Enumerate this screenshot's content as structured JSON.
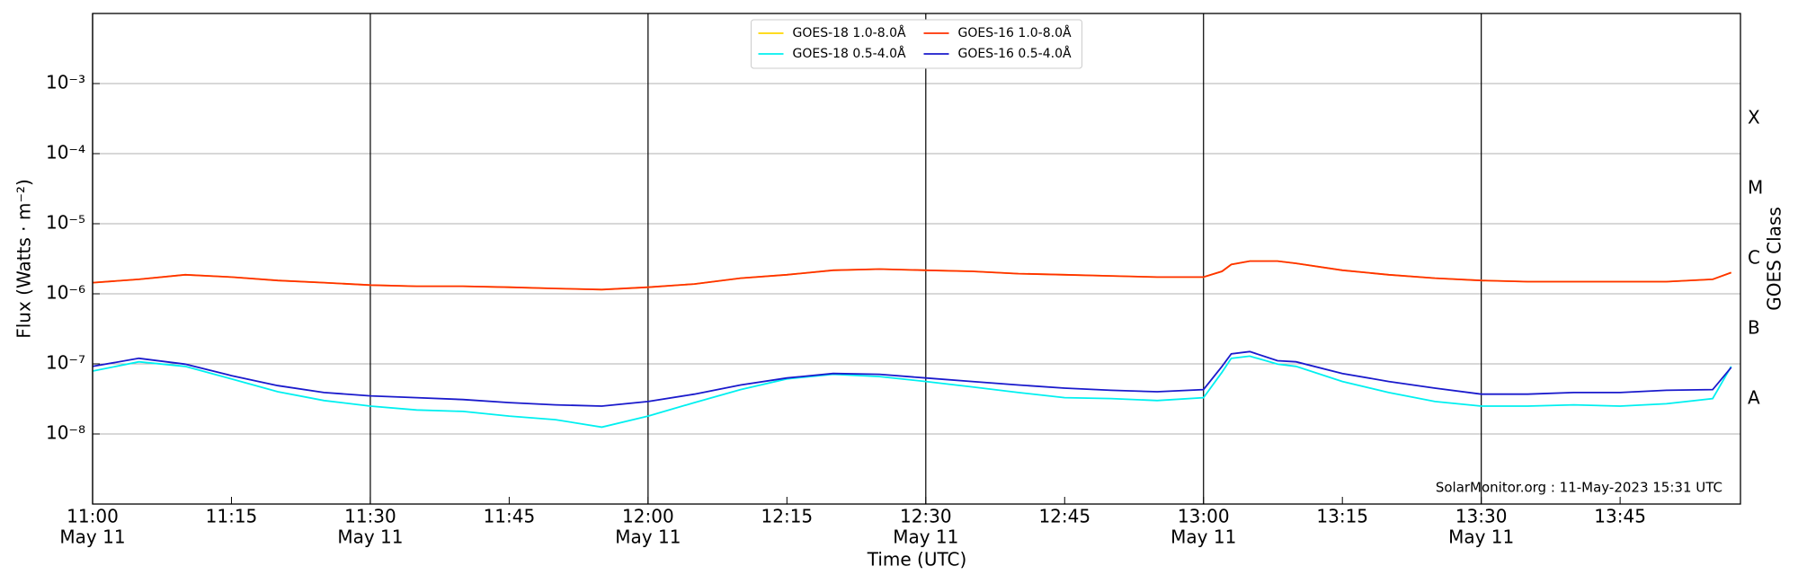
{
  "chart_data": {
    "type": "line",
    "xlabel": "Time (UTC)",
    "ylabel": "Flux (Watts · m⁻²)",
    "y2label": "GOES Class",
    "annotation": "SolarMonitor.org : 11-May-2023 15:31 UTC",
    "log_y": true,
    "grid": true,
    "legend_loc": "upper center",
    "x": [
      "11:00",
      "11:05",
      "11:10",
      "11:15",
      "11:20",
      "11:25",
      "11:30",
      "11:35",
      "11:40",
      "11:45",
      "11:50",
      "11:55",
      "12:00",
      "12:05",
      "12:10",
      "12:15",
      "12:20",
      "12:25",
      "12:30",
      "12:35",
      "12:40",
      "12:45",
      "12:50",
      "12:55",
      "13:00",
      "13:02",
      "13:03",
      "13:05",
      "13:08",
      "13:10",
      "13:15",
      "13:20",
      "13:25",
      "13:30",
      "13:35",
      "13:40",
      "13:45",
      "13:50",
      "13:55",
      "13:57"
    ],
    "xlim": [
      "11:00",
      "13:58"
    ],
    "xticks": [
      "11:00",
      "11:15",
      "11:30",
      "11:45",
      "12:00",
      "12:15",
      "12:30",
      "12:45",
      "13:00",
      "13:15",
      "13:30",
      "13:45"
    ],
    "xtick_sublabels": [
      "May 11",
      null,
      "May 11",
      null,
      "May 11",
      null,
      "May 11",
      null,
      "May 11",
      null,
      "May 11",
      null
    ],
    "ylim": [
      1e-09,
      0.01
    ],
    "yticks": [
      {
        "value": 1e-08,
        "label": "10⁻⁸"
      },
      {
        "value": 1e-07,
        "label": "10⁻⁷"
      },
      {
        "value": 1e-06,
        "label": "10⁻⁶"
      },
      {
        "value": 1e-05,
        "label": "10⁻⁵"
      },
      {
        "value": 0.0001,
        "label": "10⁻⁴"
      },
      {
        "value": 0.001,
        "label": "10⁻³"
      }
    ],
    "y2lim": [
      1e-09,
      0.01
    ],
    "y2ticks": [
      {
        "value": 3.16e-08,
        "label": "A"
      },
      {
        "value": 3.16e-07,
        "label": "B"
      },
      {
        "value": 3.16e-06,
        "label": "C"
      },
      {
        "value": 3.16e-05,
        "label": "M"
      },
      {
        "value": 0.000316,
        "label": "X"
      }
    ],
    "series": [
      {
        "name": "GOES-18 1.0-8.0Å",
        "color": "#ffd700",
        "values": [
          1.44e-06,
          1.61e-06,
          1.87e-06,
          1.73e-06,
          1.55e-06,
          1.44e-06,
          1.33e-06,
          1.28e-06,
          1.28e-06,
          1.24e-06,
          1.19e-06,
          1.15e-06,
          1.24e-06,
          1.38e-06,
          1.67e-06,
          1.87e-06,
          2.17e-06,
          2.25e-06,
          2.17e-06,
          2.09e-06,
          1.94e-06,
          1.87e-06,
          1.8e-06,
          1.73e-06,
          1.73e-06,
          2.09e-06,
          2.62e-06,
          2.93e-06,
          2.93e-06,
          2.72e-06,
          2.17e-06,
          1.87e-06,
          1.67e-06,
          1.55e-06,
          1.49e-06,
          1.49e-06,
          1.49e-06,
          1.49e-06,
          1.61e-06,
          2.01e-06
        ]
      },
      {
        "name": "GOES-18 0.5-4.0Å",
        "color": "#00f0f0",
        "values": [
          7.9e-08,
          1.07e-07,
          9.2e-08,
          6.1e-08,
          4e-08,
          3e-08,
          2.5e-08,
          2.2e-08,
          2.1e-08,
          1.8e-08,
          1.6e-08,
          1.25e-08,
          1.8e-08,
          2.8e-08,
          4.3e-08,
          6.1e-08,
          7.1e-08,
          6.6e-08,
          5.6e-08,
          4.7e-08,
          3.9e-08,
          3.3e-08,
          3.2e-08,
          3e-08,
          3.3e-08,
          7.6e-08,
          1.2e-07,
          1.29e-07,
          9.9e-08,
          9.2e-08,
          5.6e-08,
          3.9e-08,
          2.9e-08,
          2.5e-08,
          2.5e-08,
          2.6e-08,
          2.5e-08,
          2.7e-08,
          3.2e-08,
          9.2e-08
        ]
      },
      {
        "name": "GOES-16 1.0-8.0Å",
        "color": "#ff3000",
        "values": [
          1.44e-06,
          1.61e-06,
          1.87e-06,
          1.73e-06,
          1.55e-06,
          1.44e-06,
          1.33e-06,
          1.28e-06,
          1.28e-06,
          1.24e-06,
          1.19e-06,
          1.15e-06,
          1.24e-06,
          1.38e-06,
          1.67e-06,
          1.87e-06,
          2.17e-06,
          2.25e-06,
          2.17e-06,
          2.09e-06,
          1.94e-06,
          1.87e-06,
          1.8e-06,
          1.73e-06,
          1.73e-06,
          2.09e-06,
          2.62e-06,
          2.93e-06,
          2.93e-06,
          2.72e-06,
          2.17e-06,
          1.87e-06,
          1.67e-06,
          1.55e-06,
          1.49e-06,
          1.49e-06,
          1.49e-06,
          1.49e-06,
          1.61e-06,
          2.01e-06
        ]
      },
      {
        "name": "GOES-16 0.5-4.0Å",
        "color": "#1a1acc",
        "values": [
          9.2e-08,
          1.2e-07,
          9.9e-08,
          6.8e-08,
          4.9e-08,
          3.9e-08,
          3.5e-08,
          3.3e-08,
          3.1e-08,
          2.8e-08,
          2.6e-08,
          2.5e-08,
          2.9e-08,
          3.7e-08,
          5e-08,
          6.3e-08,
          7.3e-08,
          7.1e-08,
          6.3e-08,
          5.6e-08,
          5e-08,
          4.5e-08,
          4.2e-08,
          4e-08,
          4.3e-08,
          9.2e-08,
          1.39e-07,
          1.5e-07,
          1.11e-07,
          1.07e-07,
          7.3e-08,
          5.6e-08,
          4.5e-08,
          3.7e-08,
          3.7e-08,
          3.9e-08,
          3.9e-08,
          4.2e-08,
          4.3e-08,
          8.9e-08
        ]
      }
    ]
  }
}
